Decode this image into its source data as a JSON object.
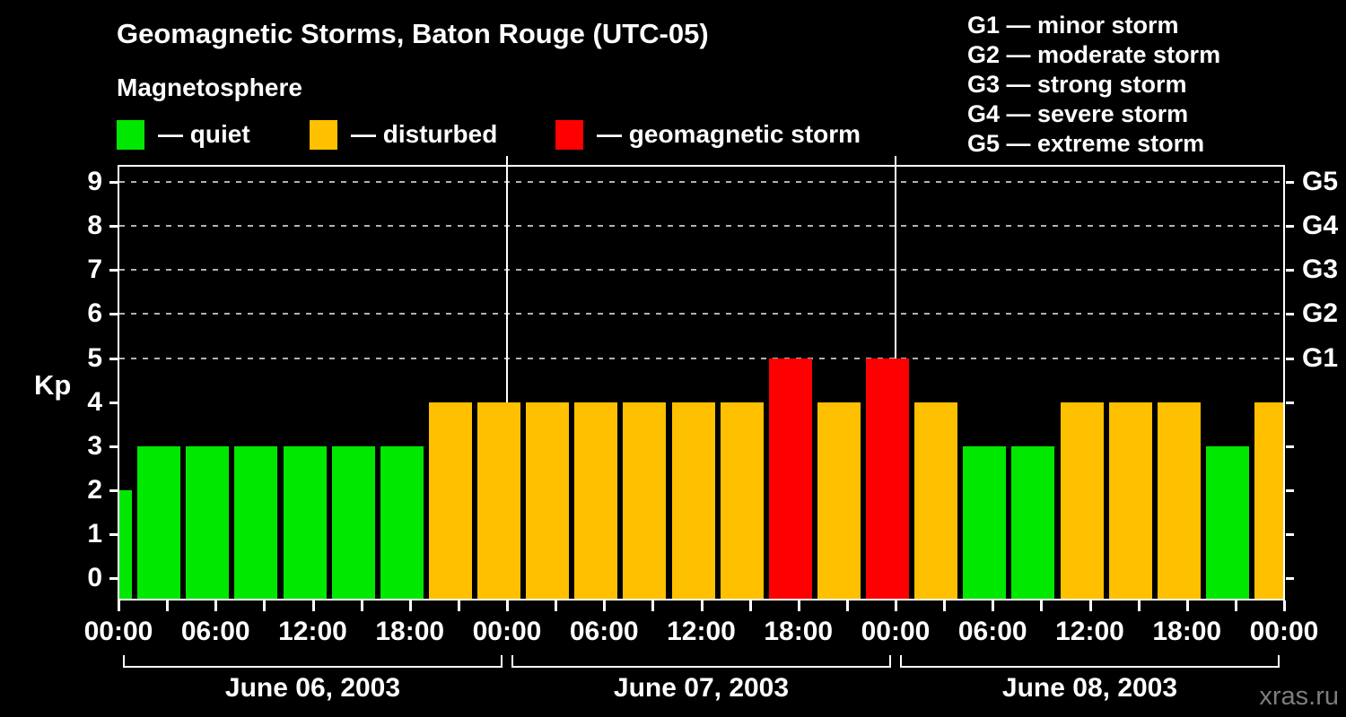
{
  "title": "Geomagnetic Storms, Baton Rouge (UTC-05)",
  "subtitle": "Magnetosphere",
  "legend": {
    "items": [
      {
        "key": "quiet",
        "label": "— quiet",
        "color": "#00E800"
      },
      {
        "key": "disturbed",
        "label": "— disturbed",
        "color": "#FFC000"
      },
      {
        "key": "storm",
        "label": "— geomagnetic storm",
        "color": "#FF0000"
      }
    ]
  },
  "storm_scale_legend": [
    "G1 — minor storm",
    "G2 — moderate storm",
    "G3 — strong storm",
    "G4 — severe storm",
    "G5 — extreme storm"
  ],
  "watermark": "xras.ru",
  "chart_data": {
    "type": "bar",
    "title": "Geomagnetic Storms, Baton Rouge (UTC-05)",
    "ylabel": "Kp",
    "ylim": [
      -0.5,
      9.4
    ],
    "y_ticks": [
      0,
      1,
      2,
      3,
      4,
      5,
      6,
      7,
      8,
      9
    ],
    "gridlines_at": [
      5,
      6,
      7,
      8,
      9
    ],
    "grid": "dashed horizontal at G-storm levels only",
    "right_axis": {
      "labels": [
        "G1",
        "G2",
        "G3",
        "G4",
        "G5"
      ],
      "values": [
        5,
        6,
        7,
        8,
        9
      ]
    },
    "x_hours": [
      0,
      3,
      6,
      9,
      12,
      15,
      18,
      21,
      24,
      27,
      30,
      33,
      36,
      39,
      42,
      45,
      48,
      51,
      54,
      57,
      60,
      63,
      66,
      69,
      72
    ],
    "values": [
      2,
      3,
      3,
      3,
      3,
      3,
      3,
      4,
      4,
      4,
      4,
      4,
      4,
      4,
      5,
      4,
      5,
      4,
      3,
      3,
      4,
      4,
      4,
      3,
      4
    ],
    "x_tick_labels": [
      "00:00",
      "06:00",
      "12:00",
      "18:00",
      "00:00",
      "06:00",
      "12:00",
      "18:00",
      "00:00",
      "06:00",
      "12:00",
      "18:00",
      "00:00"
    ],
    "day_separator_hours": [
      24,
      48
    ],
    "day_labels": [
      "June 06, 2003",
      "June 07, 2003",
      "June 08, 2003"
    ],
    "color_rule": {
      "quiet_max_kp": 3,
      "disturbed_kp": 4,
      "storm_min_kp": 5
    },
    "legend_position": "top-left (bar colors), top-right (G storm scale)"
  }
}
